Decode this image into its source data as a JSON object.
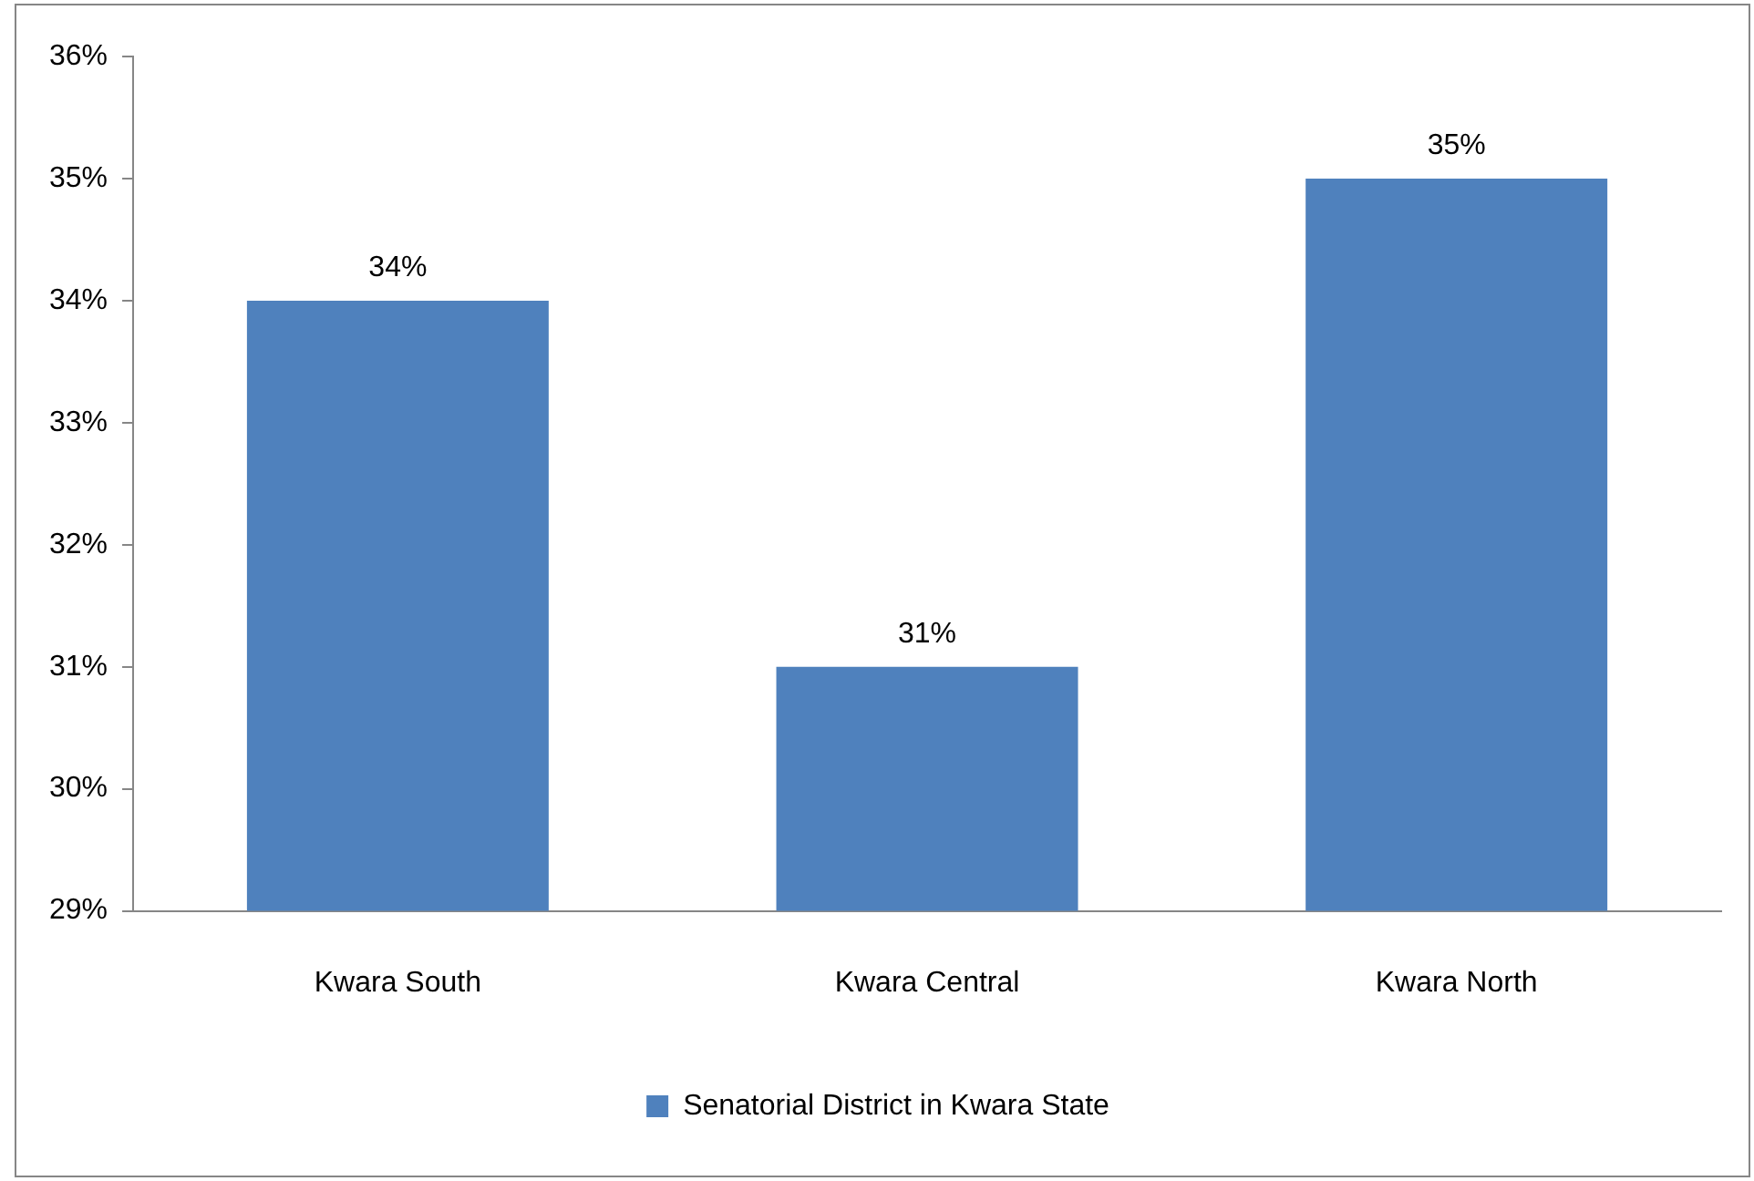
{
  "chart_data": {
    "type": "bar",
    "categories": [
      "Kwara South",
      "Kwara Central",
      "Kwara North"
    ],
    "series": [
      {
        "name": "Senatorial District in Kwara State",
        "color": "#4f81bd",
        "values": [
          34,
          31,
          35
        ],
        "value_labels": [
          "34%",
          "31%",
          "35%"
        ]
      }
    ],
    "ylim": [
      29,
      36
    ],
    "yticks": [
      {
        "value": 29,
        "label": "29%"
      },
      {
        "value": 30,
        "label": "30%"
      },
      {
        "value": 31,
        "label": "31%"
      },
      {
        "value": 32,
        "label": "32%"
      },
      {
        "value": 33,
        "label": "33%"
      },
      {
        "value": 34,
        "label": "34%"
      },
      {
        "value": 35,
        "label": "35%"
      },
      {
        "value": 36,
        "label": "36%"
      }
    ],
    "grid": false,
    "legend": "bottom"
  }
}
